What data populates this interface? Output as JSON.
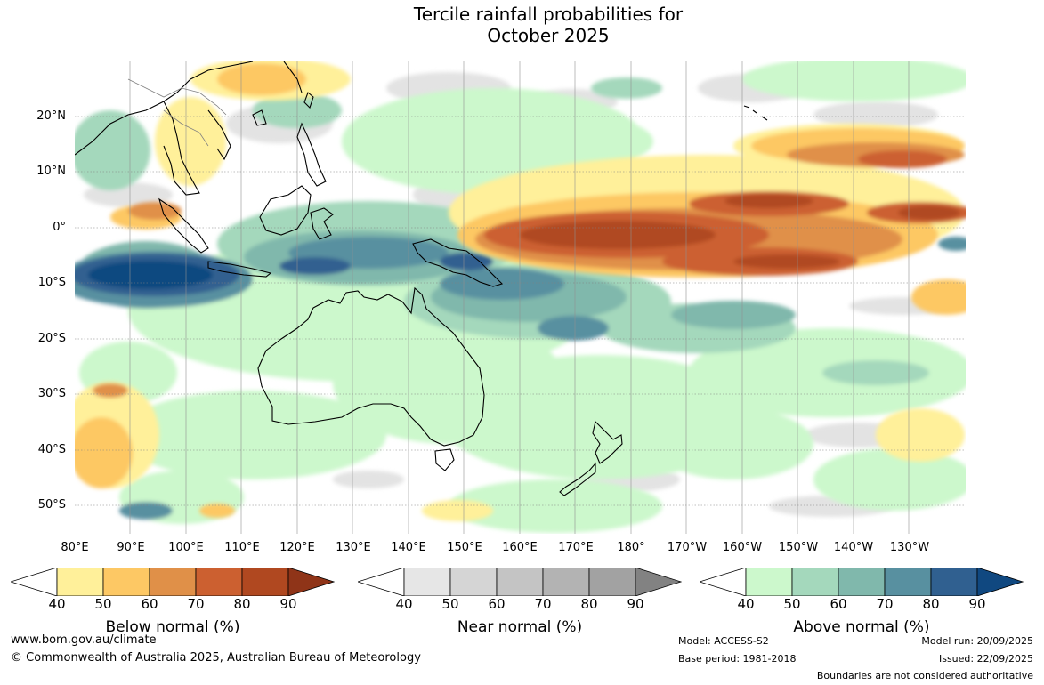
{
  "title_line1": "Tercile rainfall probabilities for",
  "title_line2": "October 2025",
  "lat_labels": [
    "20°N",
    "10°N",
    "0°",
    "10°S",
    "20°S",
    "30°S",
    "40°S",
    "50°S"
  ],
  "lon_labels": [
    "80°E",
    "90°E",
    "100°E",
    "110°E",
    "120°E",
    "130°E",
    "140°E",
    "150°E",
    "160°E",
    "170°E",
    "180°",
    "170°W",
    "160°W",
    "150°W",
    "140°W",
    "130°W"
  ],
  "legends": [
    {
      "title": "Below normal (%)",
      "ticks": [
        "40",
        "50",
        "60",
        "70",
        "80",
        "90"
      ],
      "colors": [
        "#fff09a",
        "#fdc864",
        "#e09048",
        "#cc6030",
        "#b04820",
        "#8f3418"
      ]
    },
    {
      "title": "Near normal (%)",
      "ticks": [
        "40",
        "50",
        "60",
        "70",
        "80",
        "90"
      ],
      "colors": [
        "#e6e6e6",
        "#d5d5d5",
        "#c4c4c4",
        "#b3b3b3",
        "#a2a2a2",
        "#828282"
      ]
    },
    {
      "title": "Above normal (%)",
      "ticks": [
        "40",
        "50",
        "60",
        "70",
        "80",
        "90"
      ],
      "colors": [
        "#ccf8cc",
        "#a4d8bc",
        "#80b8ac",
        "#5890a0",
        "#306090",
        "#104880"
      ]
    }
  ],
  "footer": {
    "website": "www.bom.gov.au/climate",
    "copyright": "© Commonwealth of Australia 2025, Australian Bureau of Meteorology",
    "model": "Model: ACCESS-S2",
    "base_period": "Base period: 1981-2018",
    "model_run": "Model run: 20/09/2025",
    "issued": "Issued: 22/09/2025",
    "boundaries_note": "Boundaries are not considered authoritative"
  },
  "colors": {
    "ocean_background": "#ffffff",
    "coastline": "#000000",
    "gridline": "#808080"
  }
}
